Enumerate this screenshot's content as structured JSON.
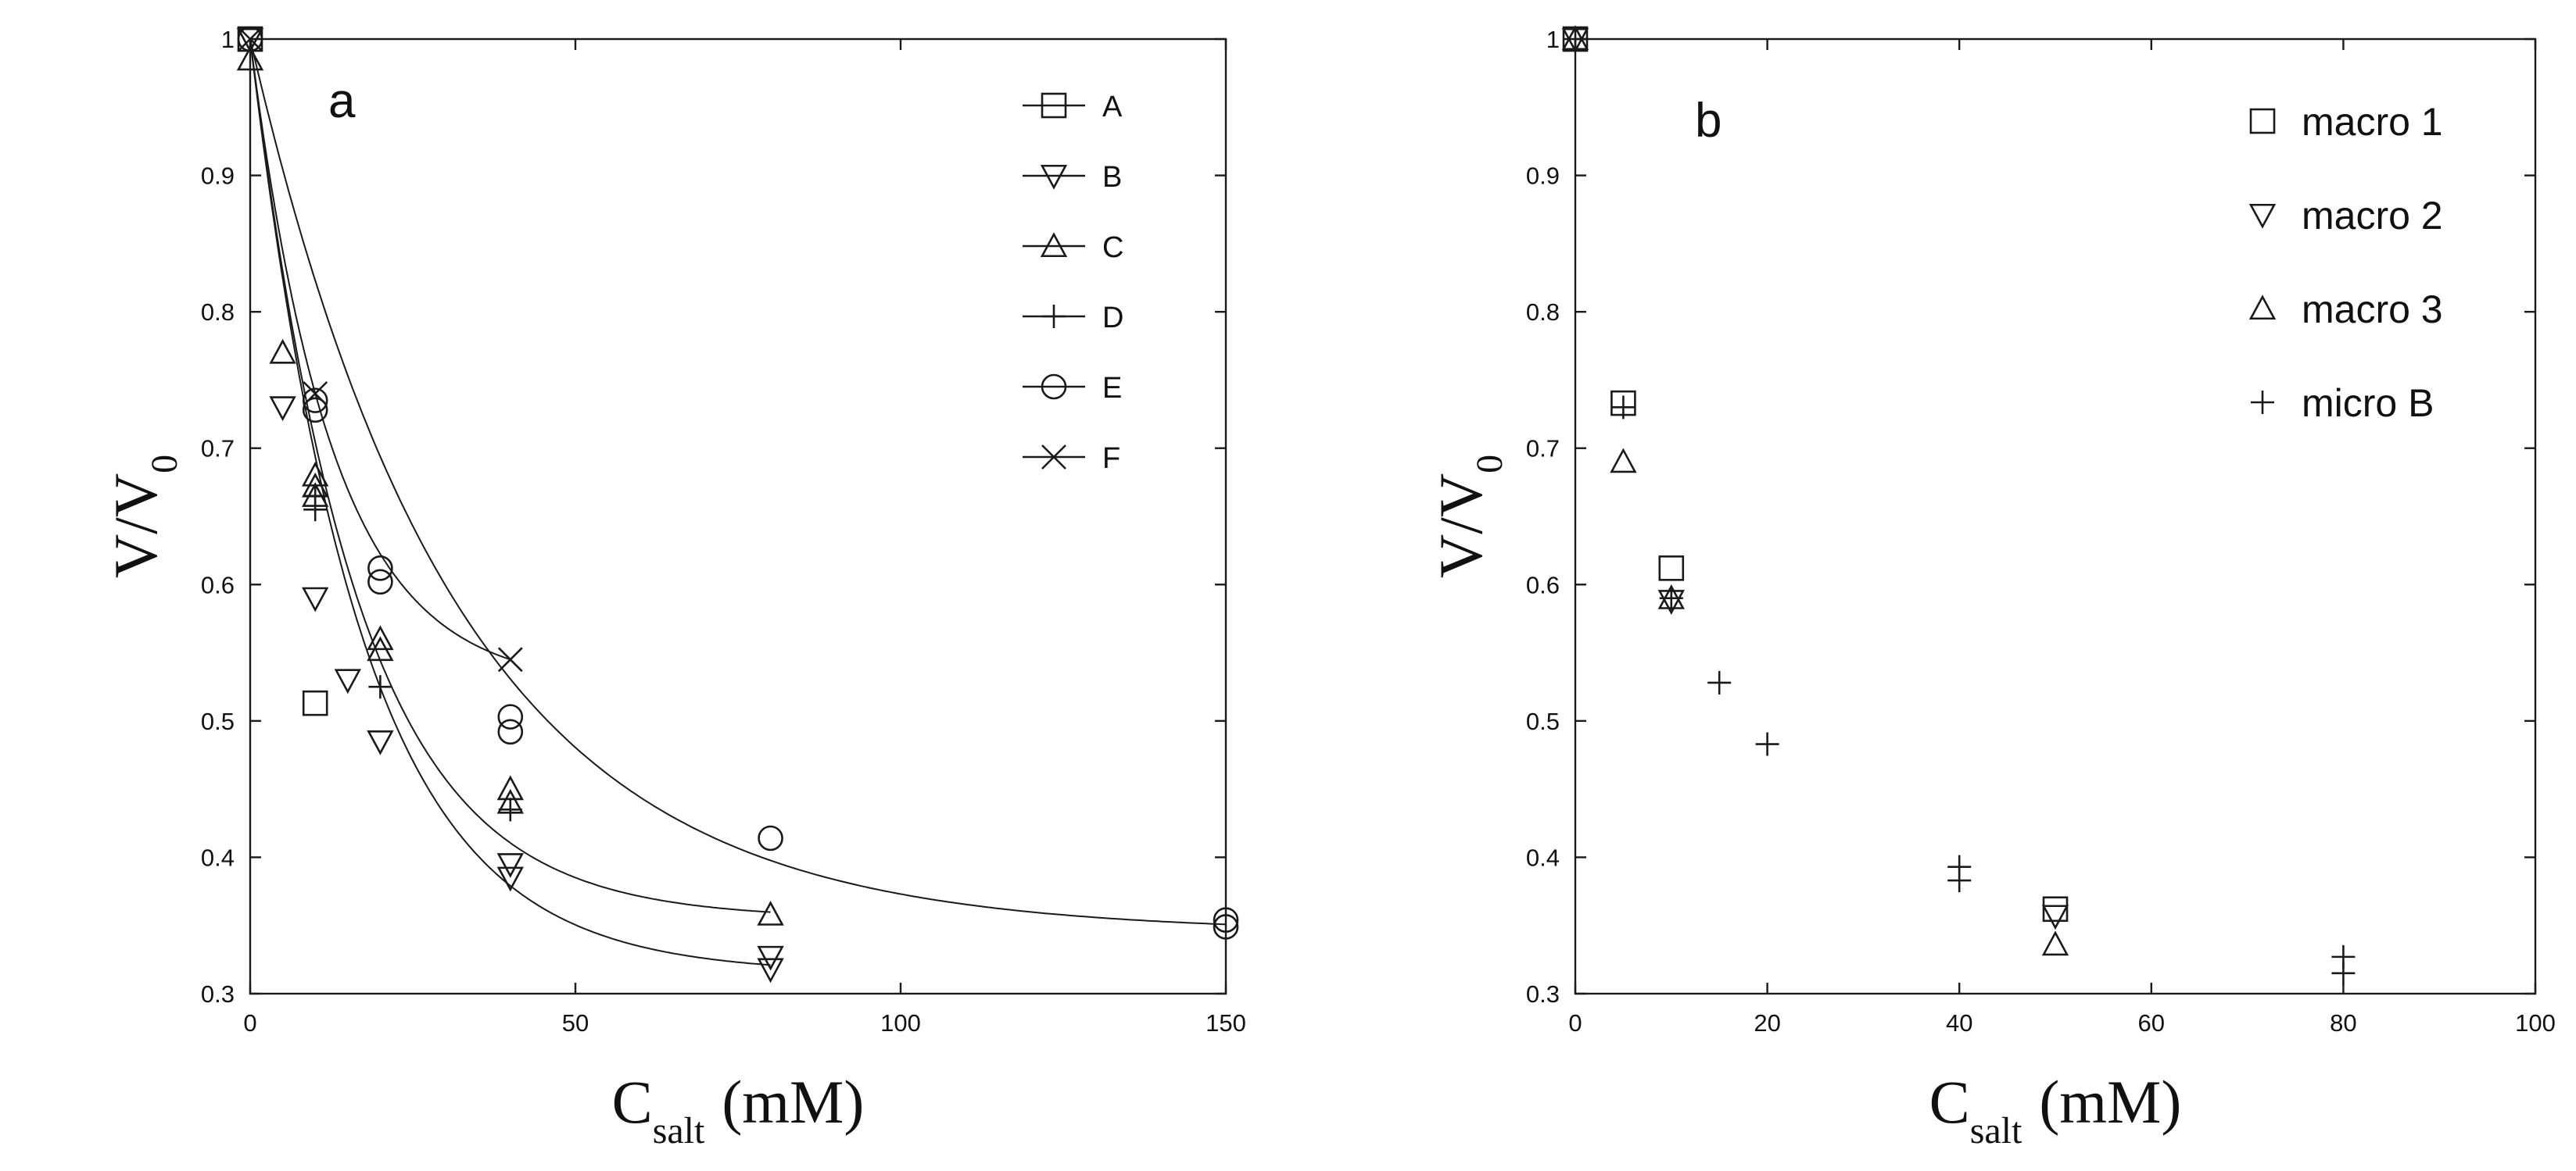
{
  "chart_data": [
    {
      "type": "scatter",
      "panel_label": "a",
      "xlabel_main": "C",
      "xlabel_sub": "salt",
      "xlabel_unit": "(mM)",
      "ylabel_main": "V/V",
      "ylabel_sub": "0",
      "xlim": [
        0,
        150
      ],
      "ylim": [
        0.3,
        1
      ],
      "xticks": [
        "0",
        "50",
        "100",
        "150"
      ],
      "yticks": [
        "0.3",
        "0.4",
        "0.5",
        "0.6",
        "0.7",
        "0.8",
        "0.9",
        "1"
      ],
      "legend_position": "top-right",
      "fitted_curves": true,
      "series": [
        {
          "name": "A",
          "marker": "square",
          "x": [
            0,
            10
          ],
          "y": [
            1.0,
            0.513
          ]
        },
        {
          "name": "B",
          "marker": "triangle-down",
          "x": [
            0,
            5,
            10,
            15,
            20,
            40,
            40,
            80,
            80
          ],
          "y": [
            1.0,
            0.73,
            0.59,
            0.53,
            0.485,
            0.385,
            0.395,
            0.318,
            0.327
          ]
        },
        {
          "name": "C",
          "marker": "triangle-up",
          "x": [
            0,
            5,
            10,
            10,
            10,
            20,
            20,
            40,
            40,
            80
          ],
          "y": [
            0.985,
            0.77,
            0.68,
            0.672,
            0.665,
            0.56,
            0.552,
            0.45,
            0.44,
            0.358
          ]
        },
        {
          "name": "D",
          "marker": "plus",
          "x": [
            10,
            10,
            20,
            40
          ],
          "y": [
            0.665,
            0.655,
            0.525,
            0.435
          ]
        },
        {
          "name": "E",
          "marker": "circle",
          "x": [
            0,
            10,
            10,
            20,
            20,
            40,
            40,
            80,
            150,
            150
          ],
          "y": [
            1.0,
            0.735,
            0.728,
            0.612,
            0.602,
            0.503,
            0.492,
            0.414,
            0.354,
            0.349
          ]
        },
        {
          "name": "F",
          "marker": "x",
          "x": [
            0,
            10,
            40
          ],
          "y": [
            1.0,
            0.74,
            0.545
          ]
        }
      ]
    },
    {
      "type": "scatter",
      "panel_label": "b",
      "xlabel_main": "C",
      "xlabel_sub": "salt",
      "xlabel_unit": "(mM)",
      "ylabel_main": "V/V",
      "ylabel_sub": "0",
      "xlim": [
        0,
        100
      ],
      "ylim": [
        0.3,
        1
      ],
      "xticks": [
        "0",
        "20",
        "40",
        "60",
        "80",
        "100"
      ],
      "yticks": [
        "0.3",
        "0.4",
        "0.5",
        "0.6",
        "0.7",
        "0.8",
        "0.9",
        "1"
      ],
      "legend_position": "top-right",
      "series": [
        {
          "name": "macro 1",
          "marker": "square",
          "x": [
            0,
            5,
            10,
            50
          ],
          "y": [
            1.0,
            0.733,
            0.612,
            0.362
          ]
        },
        {
          "name": "macro 2",
          "marker": "triangle-down",
          "x": [
            0,
            10,
            50
          ],
          "y": [
            1.0,
            0.588,
            0.357
          ]
        },
        {
          "name": "macro 3",
          "marker": "triangle-up",
          "x": [
            0,
            5,
            10,
            50
          ],
          "y": [
            1.0,
            0.69,
            0.59,
            0.336
          ]
        },
        {
          "name": "micro B",
          "marker": "plus",
          "x": [
            0,
            5,
            10,
            15,
            20,
            40,
            40,
            80,
            80
          ],
          "y": [
            1.0,
            0.73,
            0.59,
            0.528,
            0.483,
            0.393,
            0.383,
            0.327,
            0.315
          ]
        }
      ]
    }
  ]
}
